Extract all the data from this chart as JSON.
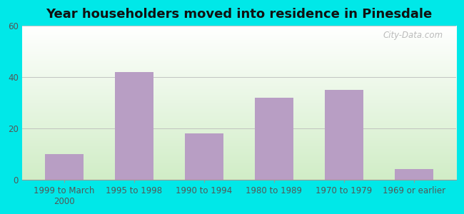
{
  "title": "Year householders moved into residence in Pinesdale",
  "categories": [
    "1999 to March\n2000",
    "1995 to 1998",
    "1990 to 1994",
    "1980 to 1989",
    "1970 to 1979",
    "1969 or earlier"
  ],
  "values": [
    10,
    42,
    18,
    32,
    35,
    4
  ],
  "bar_color": "#b89ec4",
  "ylim": [
    0,
    60
  ],
  "yticks": [
    0,
    20,
    40,
    60
  ],
  "outer_bg": "#00e8e8",
  "plot_bg_topleft": "#e8f5e0",
  "plot_bg_topright": "#ffffff",
  "plot_bg_bottom": "#d0e8c0",
  "title_fontsize": 13,
  "tick_fontsize": 8.5,
  "watermark": "City-Data.com"
}
